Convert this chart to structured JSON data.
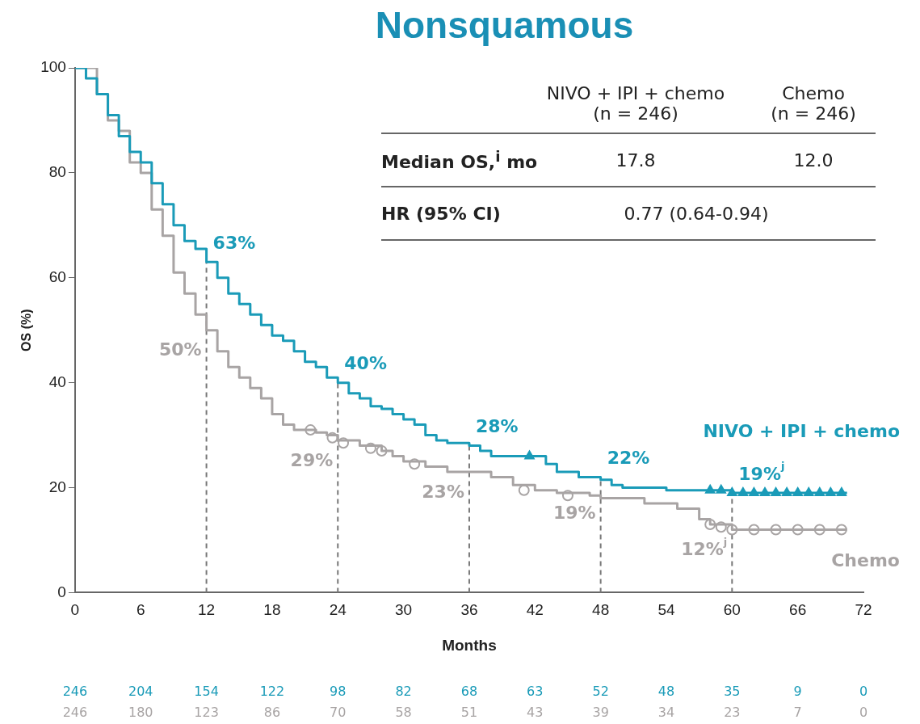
{
  "chart_data": {
    "type": "step",
    "title": "Nonsquamous",
    "xlabel": "Months",
    "ylabel": "OS (%)",
    "xlim": [
      0,
      72
    ],
    "xticks": [
      0,
      6,
      12,
      18,
      24,
      30,
      36,
      42,
      48,
      54,
      60,
      66,
      72
    ],
    "ylim": [
      0,
      100
    ],
    "yticks": [
      0,
      20,
      40,
      60,
      80,
      100
    ],
    "grid": false,
    "legend": false,
    "series": [
      {
        "name": "NIVO + IPI + chemo",
        "color": "#1a9bb8",
        "x": [
          0,
          1,
          2,
          3,
          4,
          5,
          6,
          7,
          8,
          9,
          10,
          11,
          12,
          13,
          14,
          15,
          16,
          17,
          18,
          19,
          20,
          21,
          22,
          23,
          24,
          25,
          26,
          27,
          28,
          29,
          30,
          31,
          32,
          33,
          34,
          36,
          37,
          38,
          42,
          43,
          44,
          46,
          48,
          49,
          50,
          54,
          58,
          60,
          70.5
        ],
        "values": [
          100,
          98,
          95,
          91,
          87,
          84,
          82,
          78,
          74,
          70,
          67,
          65.5,
          63,
          60,
          57,
          55,
          53,
          51,
          49,
          48,
          46,
          44,
          43,
          41,
          40,
          38,
          37,
          35.5,
          35,
          34,
          33,
          32,
          30,
          29,
          28.5,
          28,
          27,
          26,
          26,
          24.5,
          23,
          22,
          21.5,
          20.5,
          20,
          19.5,
          19.5,
          19,
          19
        ]
      },
      {
        "name": "Chemo",
        "color": "#a8a4a4",
        "x": [
          0,
          2,
          3,
          4,
          5,
          6,
          7,
          8,
          9,
          10,
          11,
          12,
          13,
          14,
          15,
          16,
          17,
          18,
          19,
          20,
          22,
          23,
          24,
          26,
          28,
          29,
          30,
          32,
          34,
          36,
          38,
          40,
          42,
          44,
          47,
          48,
          52,
          55,
          57,
          58,
          60,
          70.5
        ],
        "values": [
          100,
          95,
          90,
          88,
          82,
          80,
          73,
          68,
          61,
          57,
          53,
          50,
          46,
          43,
          41,
          39,
          37,
          34,
          32,
          31,
          30.5,
          30,
          29,
          28,
          27,
          26,
          25,
          24,
          23,
          23,
          22,
          20.5,
          19.5,
          19,
          18.5,
          18,
          17,
          16,
          14,
          13,
          12,
          12
        ]
      },
      {
        "type": "scatter",
        "marker": "triangle",
        "color": "#1a9bb8",
        "x": [
          41.5,
          58,
          59,
          60,
          61,
          62,
          63,
          64,
          65,
          66,
          67,
          68,
          69,
          70
        ],
        "values": [
          26,
          19.5,
          19.5,
          19,
          19,
          19,
          19,
          19,
          19,
          19,
          19,
          19,
          19,
          19
        ]
      },
      {
        "type": "scatter",
        "marker": "circle",
        "color": "#a8a4a4",
        "x": [
          21.5,
          23.5,
          24.5,
          27,
          28,
          31,
          41,
          45,
          58,
          59,
          60,
          62,
          64,
          66,
          68,
          70
        ],
        "values": [
          31,
          29.5,
          28.5,
          27.5,
          27,
          24.5,
          19.5,
          18.5,
          13,
          12.5,
          12,
          12,
          12,
          12,
          12,
          12
        ]
      }
    ],
    "ref_lines": [
      {
        "axis": "x",
        "value": 12,
        "line_style": "dashed"
      },
      {
        "axis": "x",
        "value": 24,
        "line_style": "dashed"
      },
      {
        "axis": "x",
        "value": 36,
        "line_style": "dashed"
      },
      {
        "axis": "x",
        "value": 48,
        "line_style": "dashed"
      },
      {
        "axis": "x",
        "value": 60,
        "line_style": "dashed"
      }
    ],
    "annotations": [
      {
        "text": "63%",
        "x": 12,
        "y": 63
      },
      {
        "text": "50%",
        "x": 12,
        "y": 50
      },
      {
        "text": "40%",
        "x": 24,
        "y": 40
      },
      {
        "text": "29%",
        "x": 24,
        "y": 29
      },
      {
        "text": "28%",
        "x": 36,
        "y": 28
      },
      {
        "text": "23%",
        "x": 36,
        "y": 23
      },
      {
        "text": "22%",
        "x": 48,
        "y": 22
      },
      {
        "text": "19%",
        "x": 48,
        "y": 19
      },
      {
        "text": "19%$^{j}$",
        "x": 60,
        "y": 19
      },
      {
        "text": "12%$^{j}$",
        "x": 60,
        "y": 12
      },
      "NIVO + IPI + chemo\n(n = 246)",
      "Chemo\n(n = 246)",
      "Median OS,$^{i}$ mo",
      "17.8",
      "12.0",
      "HR (95% CI)",
      "0.77 (0.64-0.94)",
      "246",
      "204",
      "154",
      "122",
      "98",
      "82",
      "68",
      "63",
      "52",
      "48",
      "35",
      "9",
      "0",
      "246",
      "180",
      "123",
      "86",
      "70",
      "58",
      "51",
      "43",
      "39",
      "34",
      "23",
      "7",
      "0"
    ]
  }
}
